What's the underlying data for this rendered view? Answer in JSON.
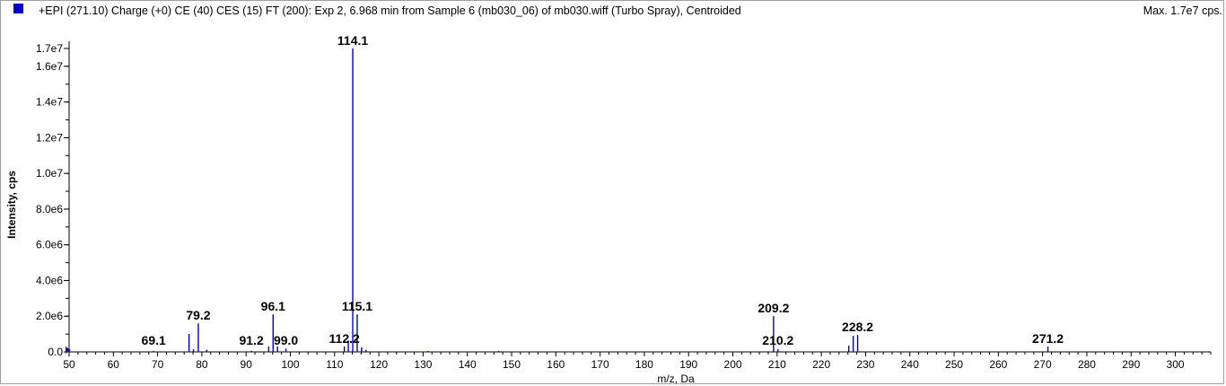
{
  "header": {
    "legend_color": "#0000cc",
    "title": "+EPI (271.10) Charge (+0) CE (40) CES (15) FT (200): Exp 2, 6.968 min from Sample 6 (mb030_06) of mb030.wiff (Turbo Spray), Centroided",
    "max_label": "Max. 1.7e7 cps."
  },
  "chart_data": {
    "type": "bar",
    "title": "+EPI (271.10) Charge (+0) CE (40) CES (15) FT (200): Exp 2, 6.968 min from Sample 6 (mb030_06) of mb030.wiff (Turbo Spray), Centroided",
    "xlabel": "m/z, Da",
    "ylabel": "Intensity, cps",
    "xlim": [
      50,
      308
    ],
    "ylim": [
      0,
      17000000
    ],
    "x_ticks": [
      50,
      60,
      70,
      80,
      90,
      100,
      110,
      120,
      130,
      140,
      150,
      160,
      170,
      180,
      190,
      200,
      210,
      220,
      230,
      240,
      250,
      260,
      270,
      280,
      290,
      300
    ],
    "y_ticks": [
      {
        "value": 0,
        "label": "0.0"
      },
      {
        "value": 2000000,
        "label": "2.0e6"
      },
      {
        "value": 4000000,
        "label": "4.0e6"
      },
      {
        "value": 6000000,
        "label": "6.0e6"
      },
      {
        "value": 8000000,
        "label": "8.0e6"
      },
      {
        "value": 10000000,
        "label": "1.0e7"
      },
      {
        "value": 12000000,
        "label": "1.2e7"
      },
      {
        "value": 14000000,
        "label": "1.4e7"
      },
      {
        "value": 16000000,
        "label": "1.6e7"
      },
      {
        "value": 17000000,
        "label": "1.7e7"
      }
    ],
    "series": [
      {
        "color": "#0000cc",
        "mz": [
          69.1,
          77.1,
          78.1,
          79.2,
          81.1,
          91.2,
          95.1,
          96.1,
          97.1,
          99.0,
          112.2,
          113.1,
          114.1,
          115.1,
          116.1,
          117.1,
          131.1,
          147.1,
          209.2,
          210.2,
          226.2,
          227.2,
          228.2,
          271.2
        ],
        "intensity": [
          50000,
          1000000,
          150000,
          1600000,
          120000,
          60000,
          300000,
          2100000,
          300000,
          180000,
          300000,
          650000,
          17000000,
          2100000,
          250000,
          120000,
          50000,
          60000,
          2000000,
          150000,
          350000,
          900000,
          950000,
          300000
        ]
      }
    ],
    "peak_labels": [
      {
        "mz": 69.1,
        "text": "69.1"
      },
      {
        "mz": 79.2,
        "text": "79.2"
      },
      {
        "mz": 91.2,
        "text": "91.2"
      },
      {
        "mz": 96.1,
        "text": "96.1"
      },
      {
        "mz": 99.0,
        "text": "99.0"
      },
      {
        "mz": 112.2,
        "text": "112.2"
      },
      {
        "mz": 114.1,
        "text": "114.1"
      },
      {
        "mz": 115.1,
        "text": "115.1"
      },
      {
        "mz": 209.2,
        "text": "209.2"
      },
      {
        "mz": 210.2,
        "text": "210.2"
      },
      {
        "mz": 228.2,
        "text": "228.2"
      },
      {
        "mz": 271.2,
        "text": "271.2"
      }
    ]
  }
}
